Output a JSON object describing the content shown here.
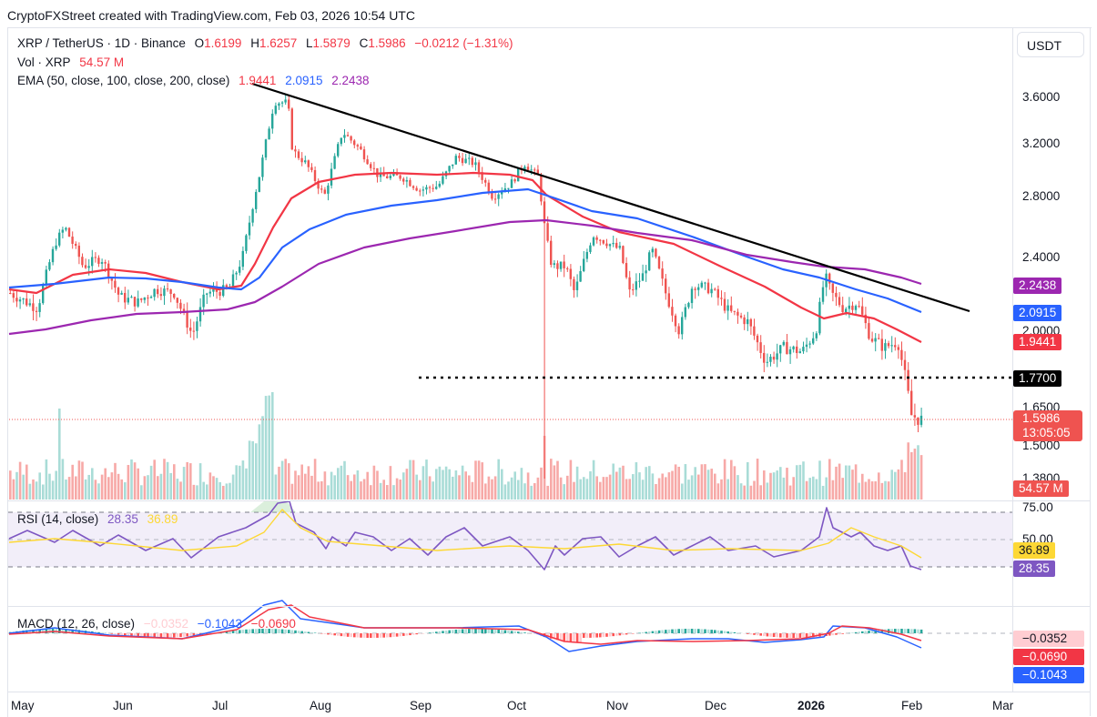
{
  "credit": "CryptoFXStreet created with TradingView.com, Feb 03, 2026 10:54 UTC",
  "header": {
    "symbol": "XRP / TetherUS · 1D · Binance",
    "open_label": "O",
    "open": "1.6199",
    "high_label": "H",
    "high": "1.6257",
    "low_label": "L",
    "low": "1.5879",
    "close_label": "C",
    "close": "1.5986",
    "change": "−0.0212 (−1.31%)",
    "vol_label": "Vol · XRP",
    "vol_value": "54.57 M",
    "ema_label": "EMA (50, close, 100, close, 200, close)",
    "ema50": "1.9441",
    "ema100": "2.0915",
    "ema200": "2.2438"
  },
  "axis": {
    "currency": "USDT",
    "price_ticks": [
      "3.6000",
      "3.2000",
      "2.8000",
      "2.4000",
      "2.0000",
      "1.6500",
      "1.5000",
      "1.3800"
    ],
    "rsi_ticks": [
      "75.00",
      "50.00"
    ],
    "time_labels": [
      "May",
      "Jun",
      "Jul",
      "Aug",
      "Sep",
      "Oct",
      "Nov",
      "Dec",
      "2026",
      "Feb",
      "Mar"
    ]
  },
  "badges": {
    "ema200": "2.2438",
    "ema100": "2.0915",
    "ema50": "1.9441",
    "support": "1.7700",
    "last_price": "1.5986",
    "countdown": "13:05:05",
    "volume": "54.57 M",
    "rsi_ma": "36.89",
    "rsi": "28.35",
    "macd_hist": "−0.0352",
    "macd_signal": "−0.0690",
    "macd_line": "−0.1043"
  },
  "rsi": {
    "label": "RSI (14, close)",
    "value": "28.35",
    "ma": "36.89"
  },
  "macd": {
    "label": "MACD (12, 26, close)",
    "hist": "−0.0352",
    "macd": "−0.1043",
    "signal": "−0.0690"
  },
  "colors": {
    "up": "#26a69a",
    "down": "#ef5350",
    "ema50": "#f23645",
    "ema100": "#2962ff",
    "ema200": "#9c27b0",
    "rsi": "#7e57c2",
    "rsi_ma": "#fdd835",
    "trendline": "#000000"
  },
  "chart_data": {
    "type": "candlestick",
    "title": "XRP / TetherUS · 1D · Binance",
    "xlabel": "",
    "ylabel": "USDT",
    "ylim": [
      1.38,
      3.75
    ],
    "x_range": [
      "May 2025",
      "Feb 03 2026"
    ],
    "last": {
      "open": 1.6199,
      "high": 1.6257,
      "low": 1.5879,
      "close": 1.5986,
      "change": -0.0212,
      "change_pct": -1.31
    },
    "monthly_closes_approx": {
      "May": 2.35,
      "Jun": 2.18,
      "Jul": 2.28,
      "Aug": 3.05,
      "Sep": 2.85,
      "Oct": 3.0,
      "Nov": 2.45,
      "Dec": 2.05,
      "Jan 2026": 2.1,
      "Feb 2026": 1.6
    },
    "key_points": [
      {
        "label": "July high",
        "value": 3.65
      },
      {
        "label": "Oct 10 flash crash wick",
        "value": 1.38
      },
      {
        "label": "Early Jan 2026 high",
        "value": 2.41
      },
      {
        "label": "Support",
        "value": 1.77
      },
      {
        "label": "Last close",
        "value": 1.5986
      }
    ],
    "series": [
      {
        "name": "EMA 50",
        "last": 1.9441
      },
      {
        "name": "EMA 100",
        "last": 2.0915
      },
      {
        "name": "EMA 200",
        "last": 2.2438
      },
      {
        "name": "Volume",
        "last": "54.57M"
      },
      {
        "name": "RSI 14",
        "last": 28.35,
        "ma": 36.89,
        "bands": [
          30,
          50,
          70
        ]
      },
      {
        "name": "MACD 12,26",
        "macd": -0.1043,
        "signal": -0.069,
        "histogram": -0.0352
      }
    ],
    "annotations": [
      "Descending trendline from July high to Jan high",
      "Horizontal dotted support at 1.7700"
    ]
  }
}
